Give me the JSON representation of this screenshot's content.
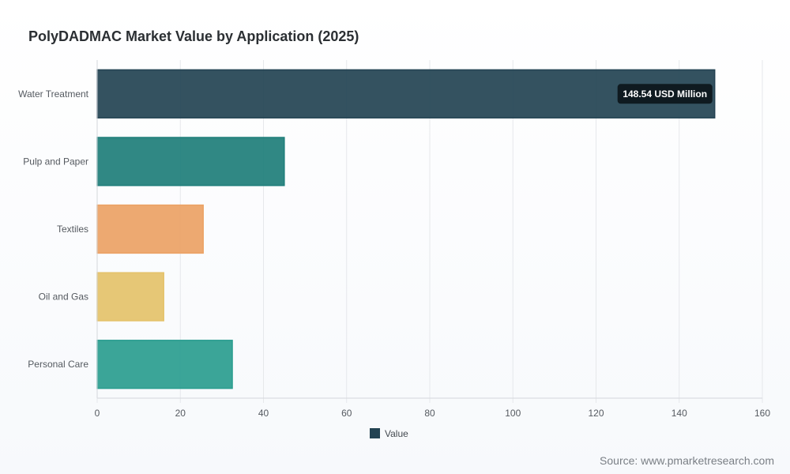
{
  "chart_data": {
    "type": "bar",
    "orientation": "horizontal",
    "title": "PolyDADMAC Market Value by Application (2025)",
    "categories": [
      "Water Treatment",
      "Pulp and Paper",
      "Textiles",
      "Oil and Gas",
      "Personal Care"
    ],
    "series": [
      {
        "name": "Value",
        "values": [
          148.54,
          45,
          25.5,
          16,
          32.5
        ]
      }
    ],
    "bar_colors": [
      "#234352",
      "#1e7e7a",
      "#eca265",
      "#e4c26a",
      "#2a9d8f"
    ],
    "legend_color": "#234352",
    "xlim": [
      0,
      160
    ],
    "xticks": [
      0,
      20,
      40,
      60,
      80,
      100,
      120,
      140,
      160
    ],
    "grid": true,
    "legend_position": "bottom",
    "tooltip": {
      "text": "148.54 USD Million"
    }
  },
  "source": "Source: www.pmarketresearch.com"
}
